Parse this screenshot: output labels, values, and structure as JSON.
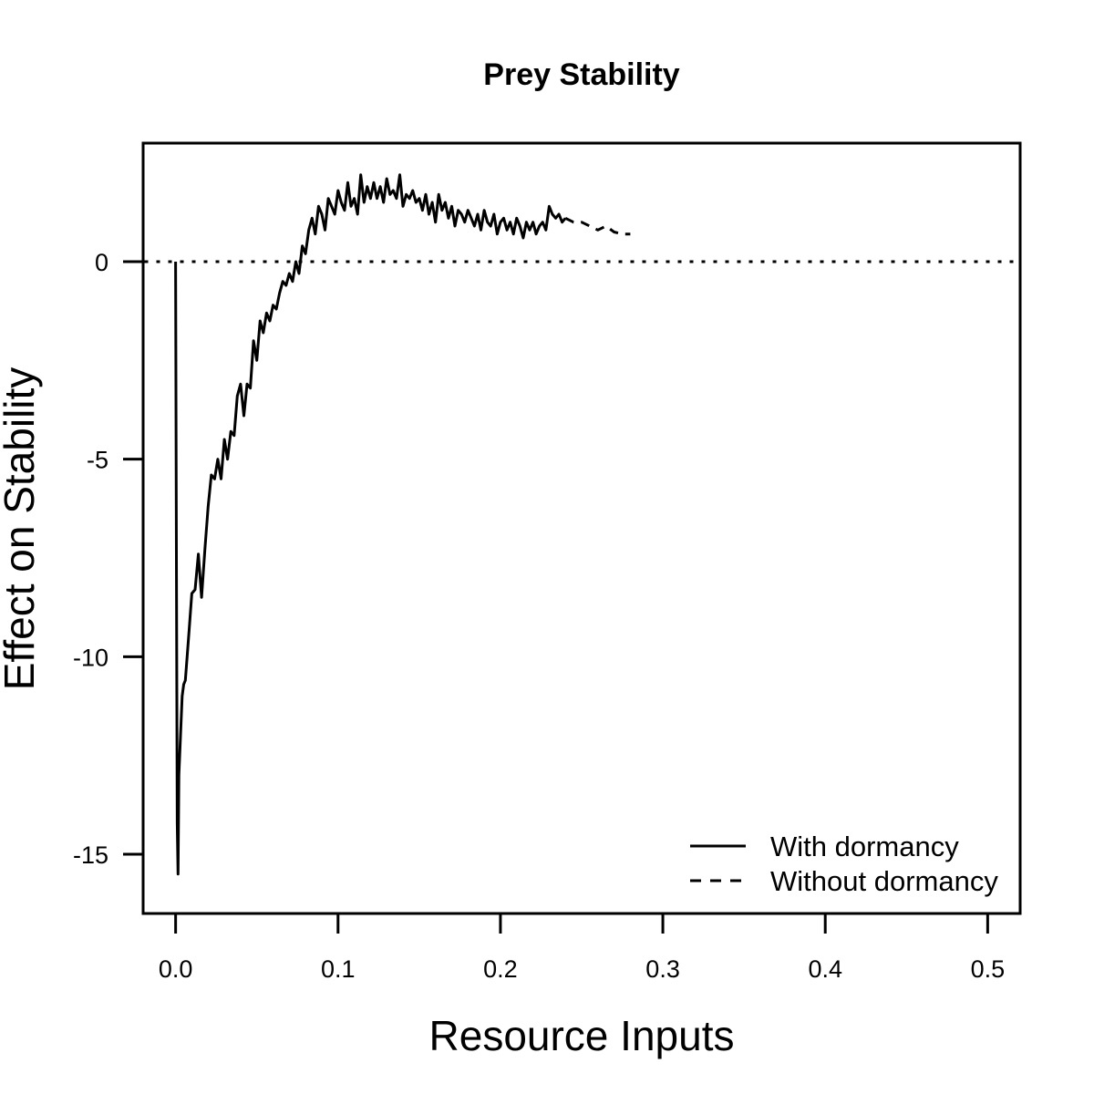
{
  "chart_data": {
    "type": "line",
    "title": "Prey Stability",
    "xlabel": "Resource Inputs",
    "ylabel": "Effect on Stability",
    "xlim": [
      -0.02,
      0.52
    ],
    "ylim": [
      -16.5,
      3.0
    ],
    "x_ticks": [
      0.0,
      0.1,
      0.2,
      0.3,
      0.4,
      0.5
    ],
    "x_tick_labels": [
      "0.0",
      "0.1",
      "0.2",
      "0.3",
      "0.4",
      "0.5"
    ],
    "y_ticks": [
      0,
      -5,
      -10,
      -15
    ],
    "y_tick_labels": [
      "0",
      "-5",
      "-10",
      "-15"
    ],
    "reference_line": {
      "y": 0,
      "style": "dotted"
    },
    "legend": {
      "position": "bottom-right"
    },
    "series": [
      {
        "name": "With dormancy",
        "style": "solid",
        "x": [
          0.0,
          0.0005,
          0.001,
          0.0015,
          0.002,
          0.003,
          0.004,
          0.005,
          0.006,
          0.008,
          0.01,
          0.012,
          0.014,
          0.016,
          0.018,
          0.02,
          0.022,
          0.024,
          0.026,
          0.028,
          0.03,
          0.032,
          0.034,
          0.036,
          0.038,
          0.04,
          0.042,
          0.044,
          0.046,
          0.048,
          0.05,
          0.052,
          0.054,
          0.056,
          0.058,
          0.06,
          0.062,
          0.064,
          0.066,
          0.068,
          0.07,
          0.072,
          0.074,
          0.076,
          0.078,
          0.08,
          0.082,
          0.084,
          0.086,
          0.088,
          0.09,
          0.092,
          0.094,
          0.096,
          0.098,
          0.1,
          0.102,
          0.104,
          0.106,
          0.108,
          0.11,
          0.112,
          0.114,
          0.116,
          0.118,
          0.12,
          0.122,
          0.124,
          0.126,
          0.128,
          0.13,
          0.132,
          0.134,
          0.136,
          0.138,
          0.14,
          0.142,
          0.144,
          0.146,
          0.148,
          0.15,
          0.152,
          0.154,
          0.156,
          0.158,
          0.16,
          0.162,
          0.164,
          0.166,
          0.168,
          0.17,
          0.172,
          0.174,
          0.176,
          0.178,
          0.18,
          0.182,
          0.184,
          0.186,
          0.188,
          0.19,
          0.192,
          0.194,
          0.196,
          0.198,
          0.2,
          0.202,
          0.204,
          0.206,
          0.208,
          0.21,
          0.212,
          0.214,
          0.216,
          0.218,
          0.22,
          0.222,
          0.224,
          0.226,
          0.228,
          0.23,
          0.232,
          0.234,
          0.236,
          0.238,
          0.24
        ],
        "y": [
          0.0,
          -7.5,
          -14.2,
          -15.5,
          -13.0,
          -12.0,
          -11.0,
          -10.7,
          -10.6,
          -9.5,
          -8.4,
          -8.3,
          -7.4,
          -8.5,
          -7.3,
          -6.2,
          -5.4,
          -5.5,
          -5.0,
          -5.5,
          -4.5,
          -5.0,
          -4.3,
          -4.4,
          -3.4,
          -3.1,
          -3.9,
          -3.1,
          -3.2,
          -2.0,
          -2.5,
          -1.5,
          -1.8,
          -1.3,
          -1.5,
          -1.1,
          -1.2,
          -0.8,
          -0.5,
          -0.6,
          -0.3,
          -0.5,
          0.0,
          -0.3,
          0.4,
          0.2,
          0.8,
          1.1,
          0.7,
          1.4,
          1.2,
          0.8,
          1.6,
          1.4,
          1.2,
          1.8,
          1.5,
          1.3,
          2.0,
          1.4,
          1.6,
          1.2,
          2.2,
          1.5,
          1.9,
          1.6,
          2.0,
          1.6,
          1.9,
          1.5,
          2.1,
          1.7,
          1.8,
          1.6,
          2.2,
          1.4,
          1.7,
          1.6,
          1.8,
          1.5,
          1.6,
          1.3,
          1.7,
          1.2,
          1.5,
          1.0,
          1.7,
          1.3,
          1.5,
          1.1,
          1.4,
          0.9,
          1.3,
          1.2,
          1.0,
          1.3,
          1.1,
          0.9,
          1.2,
          0.8,
          1.3,
          1.0,
          0.9,
          1.2,
          0.7,
          1.0,
          1.1,
          0.8,
          1.0,
          0.7,
          1.1,
          0.9,
          0.6,
          1.0,
          0.8,
          1.0,
          0.7,
          0.9,
          1.0,
          0.8,
          1.4,
          1.2,
          1.1,
          1.2,
          1.0,
          1.1
        ]
      },
      {
        "name": "Without dormancy",
        "style": "dashed",
        "x": [
          0.24,
          0.245,
          0.25,
          0.255,
          0.26,
          0.265,
          0.27,
          0.275,
          0.28
        ],
        "y": [
          1.1,
          1.0,
          1.0,
          0.9,
          0.8,
          0.9,
          0.75,
          0.7,
          0.7
        ]
      }
    ]
  }
}
